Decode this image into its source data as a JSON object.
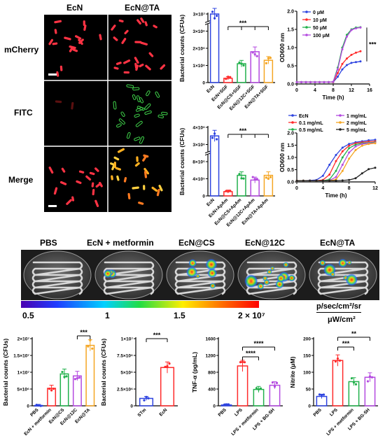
{
  "micrograph_panel": {
    "column_headers": [
      "EcN",
      "EcN@TA"
    ],
    "row_labels": [
      "mCherry",
      "FITC",
      "Merge"
    ]
  },
  "imaging_panel": {
    "group_labels": [
      "PBS",
      "EcN + metformin",
      "EcN@CS",
      "EcN@12C",
      "EcN@TA"
    ],
    "colorbar": {
      "tick_labels": [
        "0.5",
        "1",
        "1.5",
        "2 × 10⁷"
      ],
      "unit_top": "p/sec/cm²/sr",
      "unit_bottom": "μW/cm²"
    }
  },
  "chart_data": [
    {
      "id": "bar-sgf",
      "type": "bar",
      "ylabel": "Bacterial counts (CFUs)",
      "yticks": [
        "0",
        "1×10⁶",
        "2×10⁶",
        "3×10⁶",
        "3×10⁷"
      ],
      "categories": [
        "EcN",
        "EcN+SGF",
        "EcN@CS+SGF",
        "EcN@12C+SGF",
        "EcN@TA+SGF"
      ],
      "values": [
        30000000.0,
        250000.0,
        1100000.0,
        1800000.0,
        1300000.0
      ],
      "colors": [
        "#2e44e0",
        "#ff2a2a",
        "#22b14c",
        "#b44ae0",
        "#f5a623"
      ],
      "significance": [
        "***"
      ]
    },
    {
      "id": "growth-ta",
      "type": "line",
      "ylabel": "OD600 nm",
      "xlabel": "Time (h)",
      "xlim": [
        0,
        16
      ],
      "ylim": [
        0,
        2.0
      ],
      "xticks": [
        "0",
        "4",
        "8",
        "12",
        "16"
      ],
      "yticks": [
        "0.0",
        "0.5",
        "1.0",
        "1.5",
        "2.0"
      ],
      "series": [
        {
          "name": "0 μM",
          "color": "#2e44e0",
          "x": [
            0,
            1,
            2,
            3,
            4,
            5,
            6,
            7,
            8,
            9,
            10,
            11,
            12,
            13,
            14
          ],
          "y": [
            0.05,
            0.05,
            0.05,
            0.05,
            0.05,
            0.05,
            0.05,
            0.05,
            0.05,
            0.2,
            0.4,
            0.52,
            0.58,
            0.6,
            0.62
          ]
        },
        {
          "name": "10 μM",
          "color": "#ff2a2a",
          "x": [
            0,
            1,
            2,
            3,
            4,
            5,
            6,
            7,
            8,
            9,
            10,
            11,
            12,
            13,
            14
          ],
          "y": [
            0.05,
            0.05,
            0.05,
            0.05,
            0.05,
            0.05,
            0.05,
            0.05,
            0.05,
            0.3,
            0.55,
            0.7,
            0.8,
            0.86,
            0.9
          ]
        },
        {
          "name": "50 μM",
          "color": "#22b14c",
          "x": [
            0,
            1,
            2,
            3,
            4,
            5,
            6,
            7,
            8,
            9,
            10,
            11,
            12,
            13,
            14
          ],
          "y": [
            0.05,
            0.05,
            0.05,
            0.05,
            0.05,
            0.05,
            0.05,
            0.05,
            0.06,
            0.45,
            1.0,
            1.35,
            1.5,
            1.55,
            1.56
          ]
        },
        {
          "name": "100 μM",
          "color": "#b44ae0",
          "x": [
            0,
            1,
            2,
            3,
            4,
            5,
            6,
            7,
            8,
            9,
            10,
            11,
            12,
            13,
            14
          ],
          "y": [
            0.05,
            0.05,
            0.05,
            0.05,
            0.05,
            0.05,
            0.05,
            0.05,
            0.06,
            0.4,
            0.95,
            1.3,
            1.48,
            1.53,
            1.55
          ]
        }
      ],
      "significance": [
        "***"
      ]
    },
    {
      "id": "bar-apam",
      "type": "bar",
      "ylabel": "Bacterial counts (CFUs)",
      "yticks": [
        "0",
        "4×10⁵",
        "8×10⁵",
        "3×10⁶",
        "4×10⁶"
      ],
      "categories": [
        "EcN",
        "EcN+ApAm",
        "EcN@CS+ApAm",
        "EcN@12C+ApAm",
        "EcN@TA+ApAm"
      ],
      "values": [
        3500000.0,
        100000.0,
        480000.0,
        370000.0,
        480000.0
      ],
      "colors": [
        "#2e44e0",
        "#ff2a2a",
        "#22b14c",
        "#b44ae0",
        "#f5a623"
      ],
      "significance": [
        "***"
      ]
    },
    {
      "id": "growth-gel",
      "type": "line",
      "ylabel": "OD600 nm",
      "xlabel": "Time (h)",
      "xlim": [
        0,
        12
      ],
      "ylim": [
        0,
        2.0
      ],
      "xticks": [
        "0",
        "4",
        "8",
        "12"
      ],
      "yticks": [
        "0.0",
        "0.5",
        "1.0",
        "1.5",
        "2.0"
      ],
      "series": [
        {
          "name": "EcN",
          "color": "#2e44e0",
          "x": [
            0,
            1,
            2,
            3,
            4,
            5,
            6,
            7,
            8,
            9,
            10,
            11,
            12
          ],
          "y": [
            0.05,
            0.05,
            0.06,
            0.08,
            0.25,
            0.7,
            1.1,
            1.4,
            1.55,
            1.62,
            1.66,
            1.7,
            1.72
          ]
        },
        {
          "name": "0.1 mg/mL",
          "color": "#ff2a2a",
          "x": [
            0,
            1,
            2,
            3,
            4,
            5,
            6,
            7,
            8,
            9,
            10,
            11,
            12
          ],
          "y": [
            0.05,
            0.05,
            0.05,
            0.05,
            0.08,
            0.3,
            0.85,
            1.25,
            1.48,
            1.58,
            1.62,
            1.65,
            1.66
          ]
        },
        {
          "name": "0.5 mg/mL",
          "color": "#22b14c",
          "x": [
            0,
            1,
            2,
            3,
            4,
            5,
            6,
            7,
            8,
            9,
            10,
            11,
            12
          ],
          "y": [
            0.05,
            0.05,
            0.05,
            0.05,
            0.05,
            0.1,
            0.45,
            1.0,
            1.38,
            1.52,
            1.58,
            1.6,
            1.62
          ]
        },
        {
          "name": "1 mg/mL",
          "color": "#b44ae0",
          "x": [
            0,
            1,
            2,
            3,
            4,
            5,
            6,
            7,
            8,
            9,
            10,
            11,
            12
          ],
          "y": [
            0.05,
            0.05,
            0.05,
            0.05,
            0.05,
            0.06,
            0.2,
            0.7,
            1.2,
            1.45,
            1.55,
            1.58,
            1.6
          ]
        },
        {
          "name": "2 mg/mL",
          "color": "#f5a623",
          "x": [
            0,
            1,
            2,
            3,
            4,
            5,
            6,
            7,
            8,
            9,
            10,
            11,
            12
          ],
          "y": [
            0.05,
            0.05,
            0.05,
            0.05,
            0.05,
            0.05,
            0.1,
            0.45,
            0.95,
            1.3,
            1.48,
            1.55,
            1.58
          ]
        },
        {
          "name": "5 mg/mL",
          "color": "#222222",
          "x": [
            0,
            1,
            2,
            3,
            4,
            5,
            6,
            7,
            8,
            9,
            10,
            11,
            12
          ],
          "y": [
            0.05,
            0.05,
            0.05,
            0.05,
            0.05,
            0.05,
            0.05,
            0.06,
            0.08,
            0.15,
            0.35,
            0.52,
            0.58
          ]
        }
      ]
    },
    {
      "id": "bar-gut",
      "type": "bar",
      "ylabel": "Bacterial counts (CFUs)",
      "yticks": [
        "0",
        "5×10⁶",
        "1×10⁷",
        "1.5×10⁷",
        "2×10⁷"
      ],
      "categories": [
        "PBS",
        "EcN + metformin",
        "EcN@CS",
        "EcN@12C",
        "EcN@TA"
      ],
      "values": [
        100000.0,
        5200000.0,
        9500000.0,
        8900000.0,
        18000000.0
      ],
      "colors": [
        "#2e44e0",
        "#ff2a2a",
        "#22b14c",
        "#b44ae0",
        "#f5a623"
      ],
      "significance": [
        "***"
      ]
    },
    {
      "id": "bar-stm",
      "type": "bar",
      "ylabel": "Bacterial counts (CFUs)",
      "yticks": [
        "0",
        "2.5×10⁶",
        "5×10⁶",
        "7.5×10⁶",
        "1×10⁷"
      ],
      "categories": [
        "STm",
        "EcN"
      ],
      "values": [
        1100000.0,
        5700000.0
      ],
      "colors": [
        "#2e44e0",
        "#ff2a2a"
      ],
      "significance": [
        "***"
      ]
    },
    {
      "id": "bar-tnf",
      "type": "bar",
      "ylabel": "TNF-α (pg/mL)",
      "yticks": [
        "0",
        "400",
        "800",
        "1200",
        "1600"
      ],
      "categories": [
        "PBS",
        "LPS",
        "LPS + metformin",
        "LPS + BG-SH"
      ],
      "values": [
        20,
        950,
        390,
        490
      ],
      "colors": [
        "#2e44e0",
        "#ff2a2a",
        "#22b14c",
        "#b44ae0"
      ],
      "significance": [
        "****",
        "****"
      ]
    },
    {
      "id": "bar-nitrite",
      "type": "bar",
      "ylabel": "Nitrite (μM)",
      "yticks": [
        "0",
        "50",
        "100",
        "150",
        "200"
      ],
      "categories": [
        "PBS",
        "LPS",
        "LPS + metformin",
        "LPS + BG-SH"
      ],
      "values": [
        28,
        135,
        72,
        85
      ],
      "colors": [
        "#2e44e0",
        "#ff2a2a",
        "#22b14c",
        "#b44ae0"
      ],
      "significance": [
        "***",
        "**"
      ]
    }
  ]
}
